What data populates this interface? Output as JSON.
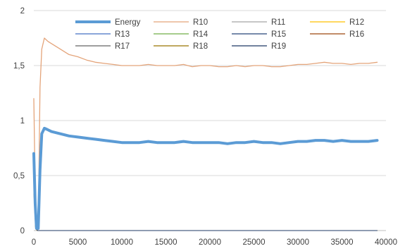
{
  "chart_data": {
    "type": "line",
    "title": "",
    "xlabel": "",
    "ylabel": "",
    "xlim": [
      0,
      40000
    ],
    "ylim": [
      0,
      2
    ],
    "x_ticks": [
      0,
      5000,
      10000,
      15000,
      20000,
      25000,
      30000,
      35000,
      40000
    ],
    "x_tick_labels": [
      "0",
      "5000",
      "10000",
      "15000",
      "20000",
      "25000",
      "30000",
      "35000",
      "40000"
    ],
    "y_ticks": [
      0,
      0.5,
      1,
      1.5,
      2
    ],
    "y_tick_labels": [
      "0",
      "0,5",
      "1",
      "1,5",
      "2"
    ],
    "grid": "horizontal",
    "legend_position": "top",
    "legend": [
      "Energy",
      "R10",
      "R11",
      "R12",
      "R13",
      "R14",
      "R15",
      "R16",
      "R17",
      "R18",
      "R19"
    ],
    "series": [
      {
        "name": "Energy",
        "color": "#5b9bd5",
        "x": [
          0,
          150,
          300,
          500,
          700,
          900,
          1200,
          1500,
          2000,
          3000,
          4000,
          5000,
          6000,
          7000,
          8000,
          9000,
          10000,
          11000,
          12000,
          13000,
          14000,
          15000,
          16000,
          17000,
          18000,
          19000,
          20000,
          21000,
          22000,
          23000,
          24000,
          25000,
          26000,
          27000,
          28000,
          29000,
          30000,
          31000,
          32000,
          33000,
          34000,
          35000,
          36000,
          37000,
          38000,
          39000
        ],
        "y": [
          0.7,
          0.25,
          0.02,
          0.02,
          0.55,
          0.88,
          0.93,
          0.92,
          0.9,
          0.88,
          0.86,
          0.85,
          0.84,
          0.83,
          0.82,
          0.81,
          0.8,
          0.8,
          0.8,
          0.81,
          0.8,
          0.8,
          0.8,
          0.81,
          0.8,
          0.8,
          0.8,
          0.8,
          0.79,
          0.8,
          0.8,
          0.81,
          0.8,
          0.8,
          0.79,
          0.8,
          0.81,
          0.81,
          0.82,
          0.82,
          0.81,
          0.82,
          0.81,
          0.81,
          0.81,
          0.82
        ]
      },
      {
        "name": "R10",
        "color": "#e4a47a",
        "x": [
          0,
          150,
          300,
          500,
          700,
          900,
          1200,
          1600,
          2000,
          3000,
          4000,
          5000,
          6000,
          7000,
          8000,
          9000,
          10000,
          11000,
          12000,
          13000,
          14000,
          15000,
          16000,
          17000,
          18000,
          19000,
          20000,
          21000,
          22000,
          23000,
          24000,
          25000,
          26000,
          27000,
          28000,
          29000,
          30000,
          31000,
          32000,
          33000,
          34000,
          35000,
          36000,
          37000,
          38000,
          39000
        ],
        "y": [
          1.2,
          0.4,
          0.02,
          0.02,
          1.3,
          1.65,
          1.75,
          1.72,
          1.7,
          1.65,
          1.6,
          1.58,
          1.55,
          1.53,
          1.52,
          1.51,
          1.5,
          1.5,
          1.5,
          1.51,
          1.5,
          1.5,
          1.5,
          1.51,
          1.49,
          1.5,
          1.5,
          1.49,
          1.49,
          1.5,
          1.49,
          1.5,
          1.5,
          1.49,
          1.49,
          1.5,
          1.51,
          1.51,
          1.52,
          1.53,
          1.52,
          1.52,
          1.51,
          1.52,
          1.52,
          1.53
        ]
      },
      {
        "name": "R11",
        "color": "#a5a5a5",
        "x": [
          0,
          200,
          400,
          39000
        ],
        "y": [
          0.6,
          0.05,
          0,
          0
        ]
      },
      {
        "name": "R12",
        "color": "#ffc000",
        "x": [
          0,
          200,
          400,
          39000
        ],
        "y": [
          0.5,
          0.03,
          0,
          0
        ]
      },
      {
        "name": "R13",
        "color": "#4472c4",
        "x": [
          0,
          200,
          400,
          39000
        ],
        "y": [
          0.65,
          0.05,
          0,
          0
        ]
      },
      {
        "name": "R14",
        "color": "#70ad47",
        "x": [
          0,
          200,
          400,
          39000
        ],
        "y": [
          0.4,
          0.02,
          0,
          0
        ]
      },
      {
        "name": "R15",
        "color": "#264478",
        "x": [
          0,
          200,
          400,
          39000
        ],
        "y": [
          0.55,
          0.04,
          0,
          0
        ]
      },
      {
        "name": "R16",
        "color": "#9e480e",
        "x": [
          0,
          200,
          400,
          39000
        ],
        "y": [
          0.45,
          0.03,
          0,
          0
        ]
      },
      {
        "name": "R17",
        "color": "#636363",
        "x": [
          0,
          200,
          400,
          39000
        ],
        "y": [
          0.6,
          0.04,
          0,
          0
        ]
      },
      {
        "name": "R18",
        "color": "#997300",
        "x": [
          0,
          200,
          400,
          39000
        ],
        "y": [
          0.35,
          0.02,
          0,
          0
        ]
      },
      {
        "name": "R19",
        "color": "#1f3864",
        "x": [
          0,
          200,
          400,
          39000
        ],
        "y": [
          0.7,
          0.05,
          0,
          0
        ]
      }
    ]
  }
}
